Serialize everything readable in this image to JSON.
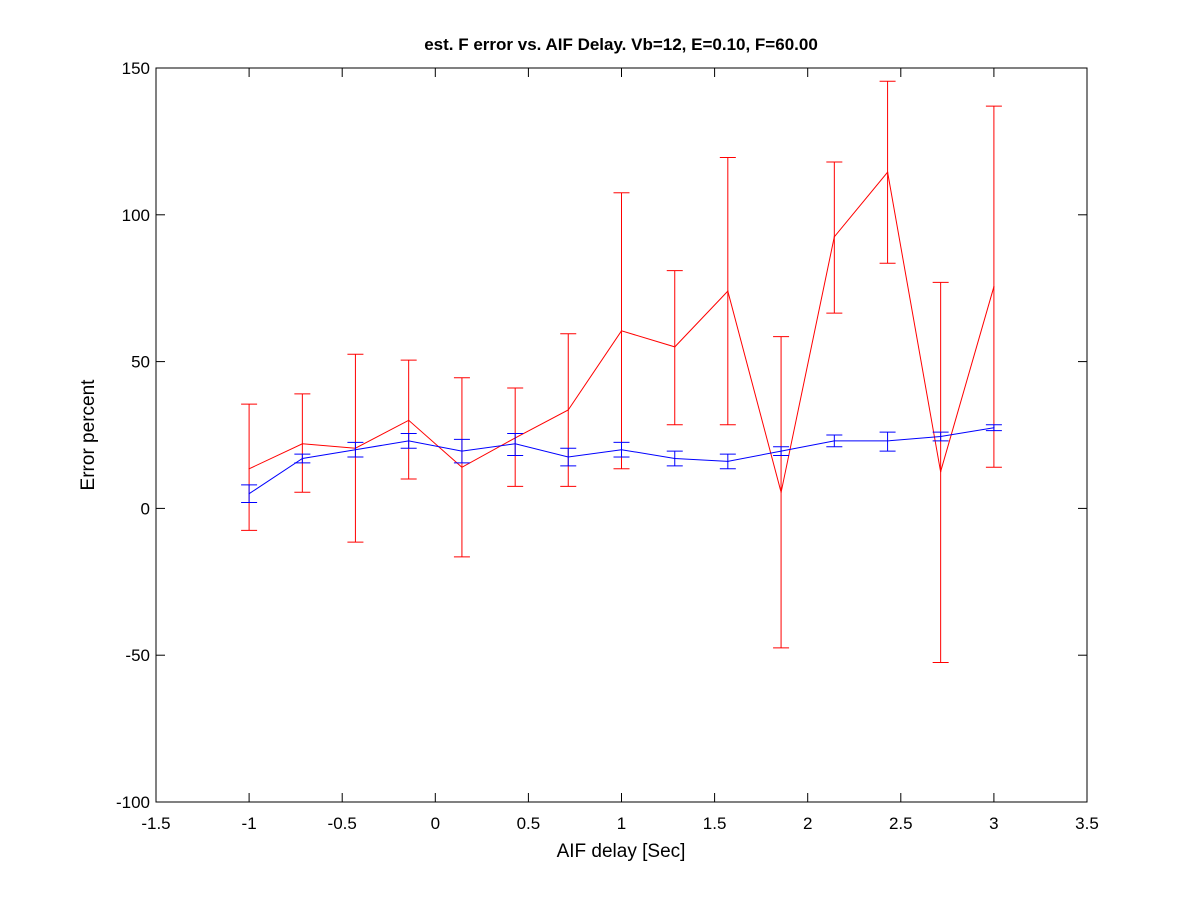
{
  "chart_data": {
    "type": "line",
    "title": "est. F error vs. AIF Delay. Vb=12, E=0.10, F=60.00",
    "xlabel": "AIF delay [Sec]",
    "ylabel": "Error percent",
    "xlim": [
      -1.5,
      3.5
    ],
    "ylim": [
      -100,
      150
    ],
    "xticks": [
      -1.5,
      -1,
      -0.5,
      0,
      0.5,
      1,
      1.5,
      2,
      2.5,
      3,
      3.5
    ],
    "xtick_labels": [
      "-1.5",
      "-1",
      "-0.5",
      "0",
      "0.5",
      "1",
      "1.5",
      "2",
      "2.5",
      "3",
      "3.5"
    ],
    "yticks": [
      -100,
      -50,
      0,
      50,
      100,
      150
    ],
    "ytick_labels": [
      "-100",
      "-50",
      "0",
      "50",
      "100",
      "150"
    ],
    "grid": false,
    "x": [
      -1.0,
      -0.714,
      -0.429,
      -0.143,
      0.143,
      0.429,
      0.714,
      1.0,
      1.286,
      1.571,
      1.857,
      2.143,
      2.429,
      2.714,
      3.0
    ],
    "series": [
      {
        "color": "#ff0000",
        "values": [
          13.5,
          22.0,
          20.5,
          30.0,
          14.0,
          24.0,
          33.5,
          60.5,
          55.0,
          74.0,
          5.5,
          92.5,
          114.5,
          12.5,
          75.5
        ],
        "err_lower": [
          -7.5,
          5.5,
          -11.5,
          10.0,
          -16.5,
          7.5,
          7.5,
          13.5,
          28.5,
          28.5,
          -47.5,
          66.5,
          83.5,
          -52.5,
          14.0
        ],
        "err_upper": [
          35.5,
          39.0,
          52.5,
          50.5,
          44.5,
          41.0,
          59.5,
          107.5,
          81.0,
          119.5,
          58.5,
          118.0,
          145.5,
          77.0,
          137.0
        ]
      },
      {
        "color": "#0000ff",
        "values": [
          5.0,
          17.0,
          20.0,
          23.0,
          19.5,
          22.0,
          17.5,
          20.0,
          17.0,
          16.0,
          19.5,
          23.0,
          23.0,
          24.5,
          27.5
        ],
        "err_lower": [
          2.0,
          15.5,
          17.5,
          20.5,
          15.5,
          18.0,
          14.5,
          17.5,
          14.5,
          13.5,
          18.0,
          21.0,
          19.5,
          23.0,
          26.5
        ],
        "err_upper": [
          8.0,
          18.5,
          22.5,
          25.5,
          23.5,
          25.5,
          20.5,
          22.5,
          19.5,
          18.5,
          21.0,
          25.0,
          26.0,
          26.0,
          28.5
        ]
      }
    ]
  }
}
